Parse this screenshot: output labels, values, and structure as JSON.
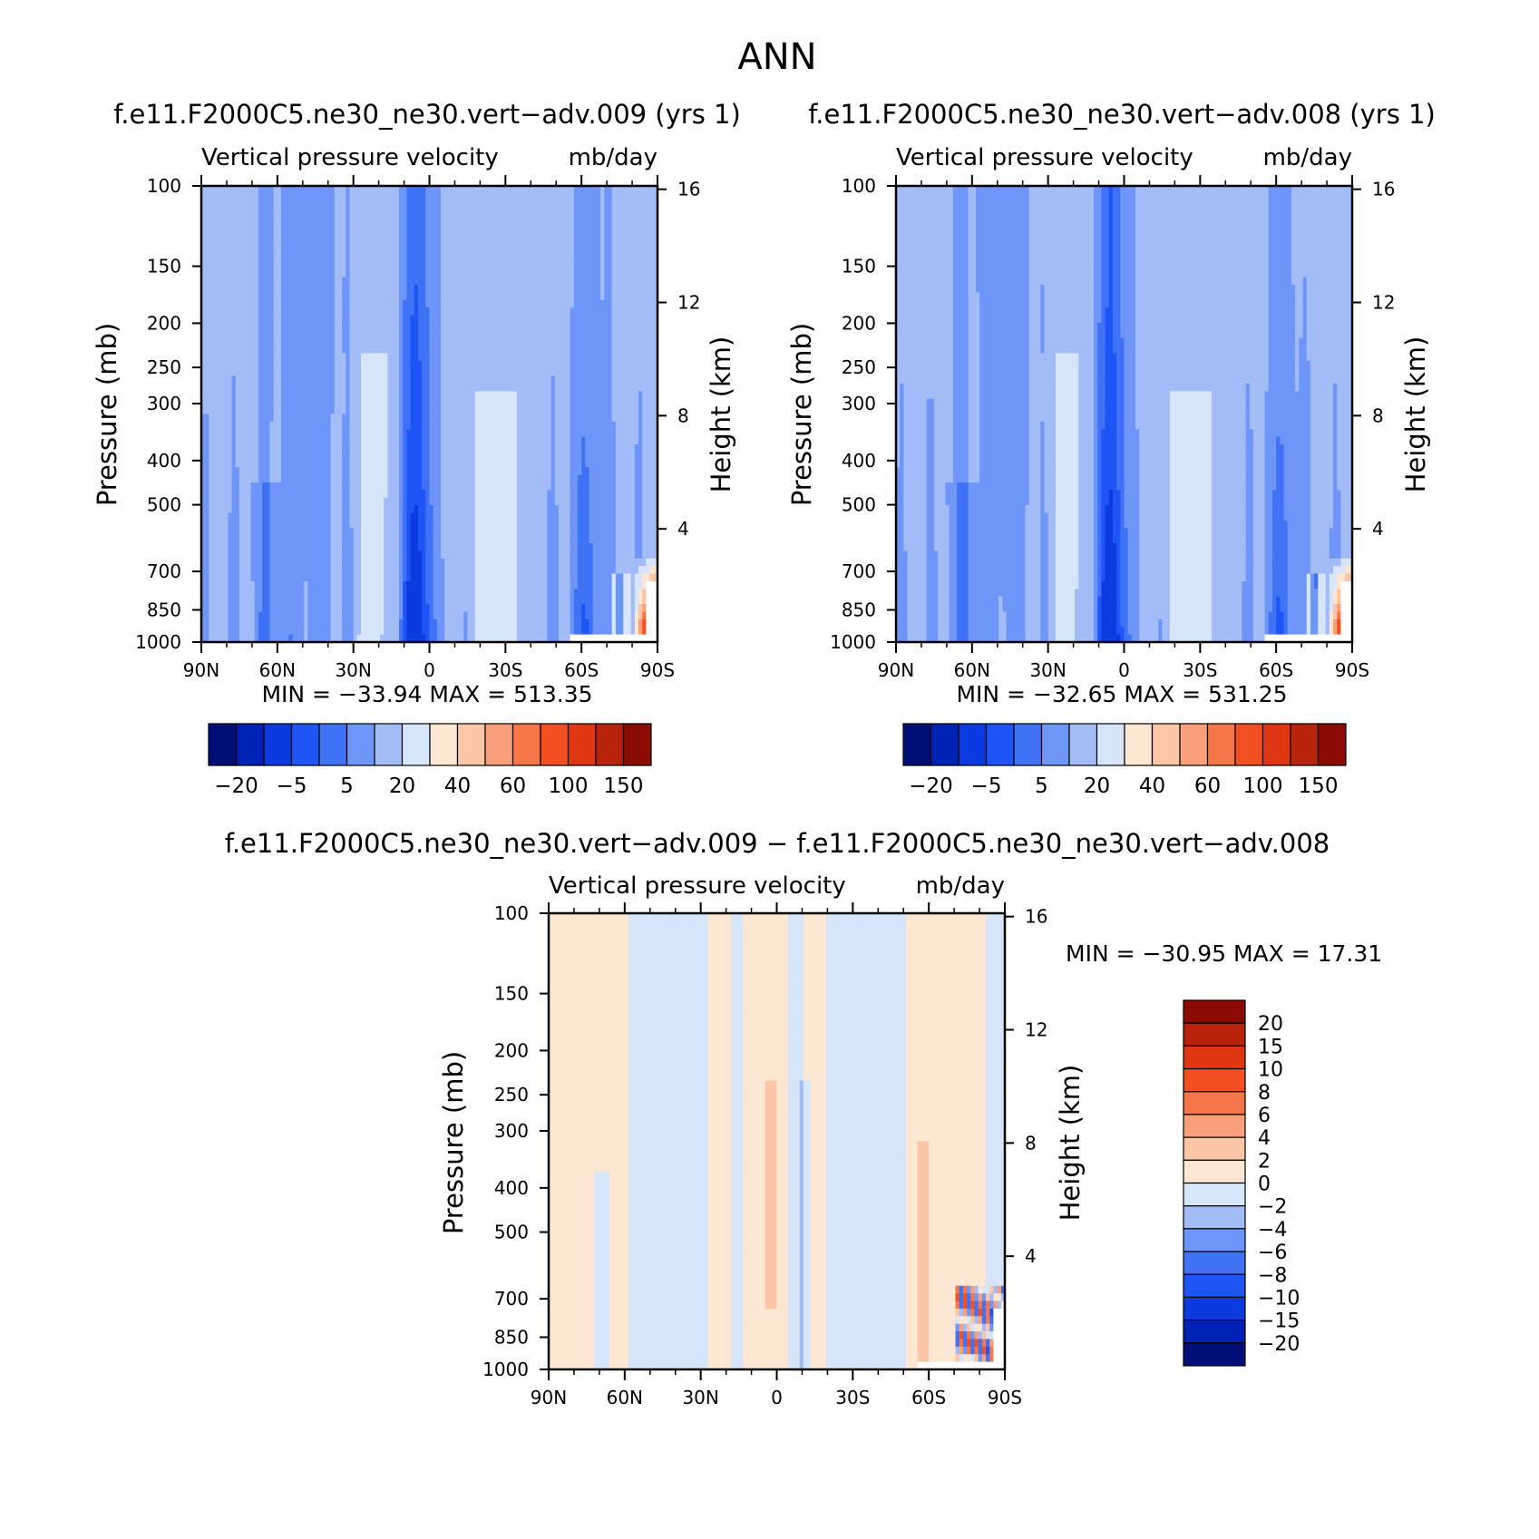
{
  "page_title": "ANN",
  "colors": {
    "main_colorbar": [
      "#000f78",
      "#0022b4",
      "#0a3ae0",
      "#1f55f7",
      "#3f72f5",
      "#6e96f8",
      "#a3bcf7",
      "#d6e5f9",
      "#fde6d2",
      "#fbc6a6",
      "#f8a07a",
      "#f6764a",
      "#f24f22",
      "#de3612",
      "#b8230b",
      "#8a0c05"
    ],
    "diff_colorbar": [
      "#000f78",
      "#0022b4",
      "#0a3ae0",
      "#1f55f7",
      "#3f72f5",
      "#6e96f8",
      "#a3bcf7",
      "#d6e5f9",
      "#fde6d2",
      "#fbc6a6",
      "#f8a07a",
      "#f6764a",
      "#f24f22",
      "#de3612",
      "#b8230b",
      "#8a0c05"
    ]
  },
  "chart_data": [
    {
      "type": "heatmap",
      "title": "f.e11.F2000C5.ne30_ne30.vert−adv.009 (yrs 1)",
      "subtitle_left": "Vertical pressure velocity",
      "subtitle_right": "mb/day",
      "ylabel": "Pressure (mb)",
      "y2label": "Height (km)",
      "x_ticks": [
        "90N",
        "60N",
        "30N",
        "0",
        "30S",
        "60S",
        "90S"
      ],
      "y_ticks": [
        "100",
        "150",
        "200",
        "250",
        "300",
        "400",
        "500",
        "700",
        "850",
        "1000"
      ],
      "y2_ticks": [
        "16",
        "12",
        "8",
        "4"
      ],
      "min_max": "MIN = −33.94   MAX = 513.35",
      "colorbar_labels": [
        "−20",
        "−5",
        "5",
        "20",
        "40",
        "60",
        "100",
        "150"
      ],
      "ylim": [
        1000,
        100
      ],
      "xlim": [
        90,
        -90
      ]
    },
    {
      "type": "heatmap",
      "title": "f.e11.F2000C5.ne30_ne30.vert−adv.008 (yrs 1)",
      "subtitle_left": "Vertical pressure velocity",
      "subtitle_right": "mb/day",
      "ylabel": "Pressure (mb)",
      "y2label": "Height (km)",
      "x_ticks": [
        "90N",
        "60N",
        "30N",
        "0",
        "30S",
        "60S",
        "90S"
      ],
      "y_ticks": [
        "100",
        "150",
        "200",
        "250",
        "300",
        "400",
        "500",
        "700",
        "850",
        "1000"
      ],
      "y2_ticks": [
        "16",
        "12",
        "8",
        "4"
      ],
      "min_max": "MIN = −32.65   MAX = 531.25",
      "colorbar_labels": [
        "−20",
        "−5",
        "5",
        "20",
        "40",
        "60",
        "100",
        "150"
      ],
      "ylim": [
        1000,
        100
      ],
      "xlim": [
        90,
        -90
      ]
    },
    {
      "type": "heatmap",
      "title": "f.e11.F2000C5.ne30_ne30.vert−adv.009 − f.e11.F2000C5.ne30_ne30.vert−adv.008",
      "subtitle_left": "Vertical pressure velocity",
      "subtitle_right": "mb/day",
      "ylabel": "Pressure (mb)",
      "y2label": "Height (km)",
      "x_ticks": [
        "90N",
        "60N",
        "30N",
        "0",
        "30S",
        "60S",
        "90S"
      ],
      "y_ticks": [
        "100",
        "150",
        "200",
        "250",
        "300",
        "400",
        "500",
        "700",
        "850",
        "1000"
      ],
      "y2_ticks": [
        "16",
        "12",
        "8",
        "4"
      ],
      "min_max": "MIN = −30.95   MAX =   17.31",
      "colorbar_labels": [
        "20",
        "15",
        "10",
        "8",
        "6",
        "4",
        "2",
        "0",
        "−2",
        "−4",
        "−6",
        "−8",
        "−10",
        "−15",
        "−20"
      ],
      "ylim": [
        1000,
        100
      ],
      "xlim": [
        90,
        -90
      ]
    }
  ]
}
